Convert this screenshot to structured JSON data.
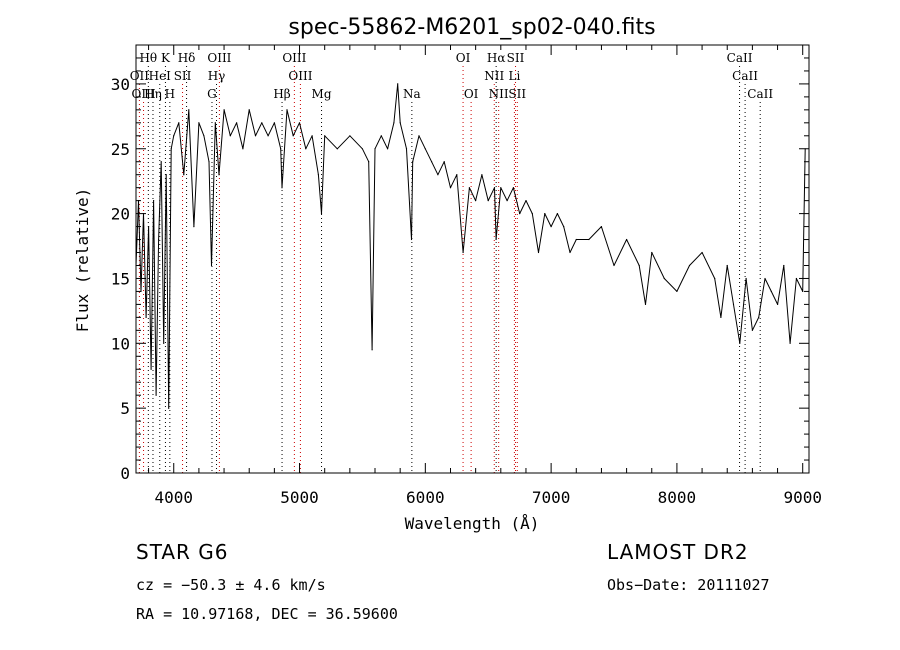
{
  "chart_data": {
    "type": "line",
    "title": "spec-55862-M6201_sp02-040.fits",
    "xlabel": "Wavelength (Å)",
    "ylabel": "Flux (relative)",
    "xlim": [
      3700,
      9050
    ],
    "ylim": [
      0,
      33
    ],
    "xticks": [
      4000,
      5000,
      6000,
      7000,
      8000,
      9000
    ],
    "yticks": [
      0,
      5,
      10,
      15,
      20,
      25,
      30
    ],
    "grid": false,
    "series": [
      {
        "x": [
          3700,
          3720,
          3740,
          3760,
          3780,
          3800,
          3820,
          3840,
          3860,
          3880,
          3900,
          3920,
          3940,
          3960,
          3980,
          4000,
          4040,
          4080,
          4120,
          4160,
          4200,
          4240,
          4280,
          4300,
          4330,
          4360,
          4400,
          4450,
          4500,
          4550,
          4600,
          4650,
          4700,
          4750,
          4800,
          4850,
          4861,
          4900,
          4950,
          5000,
          5050,
          5100,
          5150,
          5175,
          5200,
          5300,
          5400,
          5500,
          5550,
          5577,
          5600,
          5650,
          5700,
          5750,
          5780,
          5800,
          5850,
          5890,
          5900,
          5950,
          6000,
          6050,
          6100,
          6150,
          6200,
          6250,
          6300,
          6350,
          6400,
          6450,
          6500,
          6550,
          6563,
          6600,
          6650,
          6700,
          6750,
          6800,
          6850,
          6900,
          6950,
          7000,
          7050,
          7100,
          7150,
          7200,
          7300,
          7400,
          7500,
          7600,
          7700,
          7750,
          7800,
          7900,
          8000,
          8100,
          8200,
          8300,
          8350,
          8400,
          8450,
          8500,
          8550,
          8600,
          8650,
          8700,
          8750,
          8800,
          8850,
          8900,
          8950,
          9000,
          9020
        ],
        "y": [
          16,
          21,
          14,
          20,
          12,
          19,
          8,
          21,
          6,
          18,
          24,
          10,
          23,
          5,
          25,
          26,
          27,
          23,
          28,
          19,
          27,
          26,
          24,
          16,
          27,
          23,
          28,
          26,
          27,
          25,
          28,
          26,
          27,
          26,
          27,
          25,
          22,
          28,
          26,
          27,
          25,
          26,
          23,
          20,
          26,
          25,
          26,
          25,
          24,
          9.5,
          25,
          26,
          25,
          27,
          30,
          27,
          25,
          18,
          24,
          26,
          25,
          24,
          23,
          24,
          22,
          23,
          17,
          22,
          21,
          23,
          21,
          22,
          18,
          22,
          21,
          22,
          20,
          21,
          20,
          17,
          20,
          19,
          20,
          19,
          17,
          18,
          18,
          19,
          16,
          18,
          16,
          13,
          17,
          15,
          14,
          16,
          17,
          15,
          12,
          16,
          13,
          10,
          15,
          11,
          12,
          15,
          14,
          13,
          16,
          10,
          15,
          14,
          25
        ]
      }
    ],
    "line_labels": [
      {
        "text": "Hθ",
        "x": 3798,
        "row": 1
      },
      {
        "text": "K",
        "x": 3934,
        "row": 1
      },
      {
        "text": "Hδ",
        "x": 4102,
        "row": 1
      },
      {
        "text": "OIII",
        "x": 4363,
        "row": 1
      },
      {
        "text": "OIII",
        "x": 4959,
        "row": 1
      },
      {
        "text": "OI",
        "x": 6300,
        "row": 1
      },
      {
        "text": "Hα",
        "x": 6563,
        "row": 1
      },
      {
        "text": "SII",
        "x": 6717,
        "row": 1
      },
      {
        "text": "CaII",
        "x": 8498,
        "row": 1
      },
      {
        "text": "OII",
        "x": 3727,
        "row": 2
      },
      {
        "text": "HeI",
        "x": 3889,
        "row": 2
      },
      {
        "text": "SII",
        "x": 4070,
        "row": 2
      },
      {
        "text": "Hγ",
        "x": 4340,
        "row": 2
      },
      {
        "text": "OIII",
        "x": 5007,
        "row": 2
      },
      {
        "text": "NII",
        "x": 6548,
        "row": 2
      },
      {
        "text": "Li",
        "x": 6708,
        "row": 2
      },
      {
        "text": "CaII",
        "x": 8542,
        "row": 2
      },
      {
        "text": "OIII",
        "x": 3760,
        "row": 3
      },
      {
        "text": "Hη",
        "x": 3835,
        "row": 3
      },
      {
        "text": "H",
        "x": 3969,
        "row": 3
      },
      {
        "text": "G",
        "x": 4304,
        "row": 3
      },
      {
        "text": "Hβ",
        "x": 4861,
        "row": 3
      },
      {
        "text": "Mg",
        "x": 5175,
        "row": 3
      },
      {
        "text": "Na",
        "x": 5893,
        "row": 3
      },
      {
        "text": "OI",
        "x": 6364,
        "row": 3
      },
      {
        "text": "NII",
        "x": 6583,
        "row": 3
      },
      {
        "text": "SII",
        "x": 6731,
        "row": 3
      },
      {
        "text": "CaII",
        "x": 8662,
        "row": 3
      }
    ],
    "line_colors": {
      "emission": "#cc0000",
      "absorption": "#000000"
    }
  },
  "info": {
    "object": "STAR    G6",
    "survey": "LAMOST DR2",
    "cz": "cz = −50.3 ± 4.6 km/s",
    "obs_date": "Obs−Date: 20111027",
    "coords": "RA =   10.97168, DEC =   36.59600"
  }
}
